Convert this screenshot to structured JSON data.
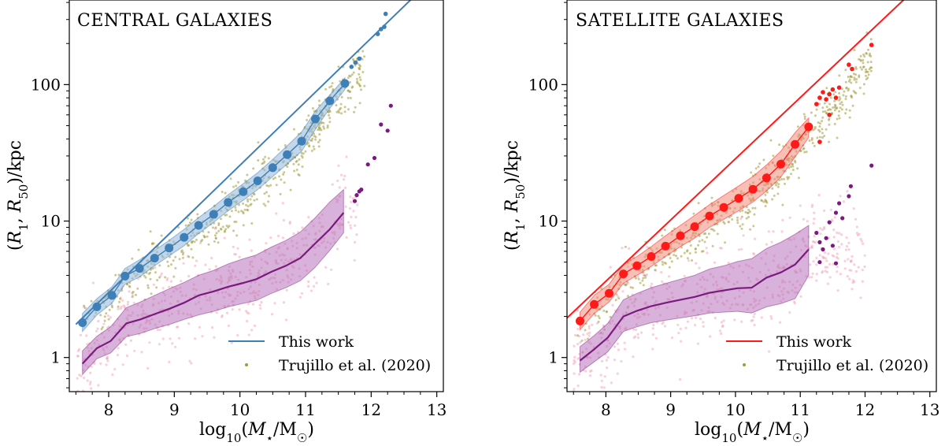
{
  "chart_data": [
    {
      "type": "scatter",
      "title": "CENTRAL GALAXIES",
      "xlabel": "log10(M⋆/M☉)",
      "ylabel": "(R1, R50)/kpc",
      "xlim": [
        7.4,
        13.1
      ],
      "ylim_log10": [
        -0.25,
        2.62
      ],
      "yscale": "log",
      "xticks": [
        "8",
        "9",
        "10",
        "11",
        "12",
        "13"
      ],
      "xtick_values": [
        8,
        9,
        10,
        11,
        12,
        13
      ],
      "yticks": [
        "1",
        "10",
        "100"
      ],
      "ytick_values": [
        1,
        10,
        100
      ],
      "accent_color": "#3f7fb8",
      "band_color": "#8fb6dc",
      "r50_color": "#7b1a7e",
      "r50_band_color": "#b873bb",
      "trujillo_color": "#a09a3a",
      "pink_color": "#f4a7bd",
      "legend": {
        "this_work": "This work",
        "trujillo": "Trujillo et al. (2020)"
      },
      "r1_line": {
        "x": [
          7.5,
          12.75
        ],
        "y": [
          1.75,
          490
        ]
      },
      "r1_points": {
        "x": [
          7.6,
          7.82,
          8.05,
          8.25,
          8.47,
          8.7,
          8.92,
          9.15,
          9.37,
          9.6,
          9.82,
          10.05,
          10.27,
          10.5,
          10.72,
          10.94,
          11.15,
          11.37,
          11.6
        ],
        "y": [
          1.8,
          2.35,
          2.85,
          3.95,
          4.5,
          5.35,
          6.35,
          7.6,
          9.3,
          11.2,
          13.7,
          16.4,
          19.7,
          24.6,
          30.7,
          38.5,
          56,
          76,
          102
        ]
      },
      "r1_band_upper": [
        2.1,
        2.7,
        3.3,
        4.5,
        5.2,
        6.1,
        7.2,
        8.7,
        10.6,
        12.8,
        15.6,
        18.8,
        22.6,
        28.3,
        35.6,
        45,
        64,
        84,
        112
      ],
      "r1_band_lower": [
        1.55,
        2.05,
        2.5,
        3.45,
        3.9,
        4.7,
        5.55,
        6.6,
        8.1,
        9.8,
        11.9,
        14.2,
        17,
        21.2,
        26.2,
        32.5,
        47,
        67,
        92
      ],
      "r1_extra_points": {
        "x": [
          11.7,
          11.76,
          11.82,
          12.1,
          12.15,
          12.2,
          12.22
        ],
        "y": [
          135,
          145,
          155,
          235,
          255,
          265,
          330
        ]
      },
      "r50_line": {
        "x": [
          7.6,
          7.82,
          8.03,
          8.27,
          8.48,
          8.7,
          8.93,
          9.15,
          9.37,
          9.6,
          9.82,
          10.03,
          10.25,
          10.48,
          10.7,
          10.92,
          11.14,
          11.37,
          11.58
        ],
        "y": [
          0.9,
          1.17,
          1.32,
          1.78,
          1.9,
          2.08,
          2.28,
          2.52,
          2.85,
          3.05,
          3.3,
          3.5,
          3.75,
          4.25,
          4.7,
          5.35,
          6.8,
          8.7,
          11.5
        ]
      },
      "r50_band_upper": [
        1.12,
        1.43,
        1.68,
        2.32,
        2.55,
        2.85,
        3.2,
        3.55,
        4.0,
        4.35,
        4.85,
        5.25,
        5.65,
        6.45,
        7.2,
        8.3,
        10.5,
        13.8,
        17
      ],
      "r50_band_lower": [
        0.75,
        0.98,
        1.08,
        1.42,
        1.5,
        1.63,
        1.75,
        1.9,
        2.05,
        2.18,
        2.35,
        2.48,
        2.62,
        2.95,
        3.25,
        3.65,
        4.55,
        6.1,
        8.2
      ],
      "r50_extra_points": {
        "x": [
          11.78,
          11.82,
          11.85,
          11.75,
          11.95,
          12.05,
          12.15,
          12.25,
          12.3
        ],
        "y": [
          15.5,
          16.5,
          17,
          14,
          26,
          29,
          51,
          46,
          70
        ]
      }
    },
    {
      "type": "scatter",
      "title": "SATELLITE GALAXIES",
      "xlabel": "log10(M⋆/M☉)",
      "ylabel": "(R1, R50)/kpc",
      "xlim": [
        7.4,
        13.1
      ],
      "ylim_log10": [
        -0.25,
        2.62
      ],
      "yscale": "log",
      "xticks": [
        "8",
        "9",
        "10",
        "11",
        "12",
        "13"
      ],
      "xtick_values": [
        8,
        9,
        10,
        11,
        12,
        13
      ],
      "yticks": [
        "1",
        "10",
        "100"
      ],
      "ytick_values": [
        1,
        10,
        100
      ],
      "accent_color": "#ff1a1a",
      "band_color": "#f08a7a",
      "r50_color": "#7b1a7e",
      "r50_band_color": "#b873bb",
      "trujillo_color": "#a09a3a",
      "pink_color": "#f4a7bd",
      "legend": {
        "this_work": "This work",
        "trujillo": "Trujillo et al. (2020)"
      },
      "r1_line": {
        "x": [
          7.4,
          12.75
        ],
        "y": [
          1.95,
          490
        ]
      },
      "r1_points": {
        "x": [
          7.6,
          7.82,
          8.05,
          8.27,
          8.48,
          8.7,
          8.92,
          9.15,
          9.37,
          9.6,
          9.82,
          10.05,
          10.27,
          10.48,
          10.7,
          10.92,
          11.13
        ],
        "y": [
          1.85,
          2.45,
          2.95,
          4.1,
          4.7,
          5.5,
          6.55,
          7.8,
          9.1,
          10.9,
          12.6,
          14.7,
          17.1,
          20.7,
          26.1,
          36.5,
          49
        ]
      },
      "r1_band_upper": [
        2.15,
        2.85,
        3.45,
        4.8,
        5.5,
        6.5,
        7.8,
        9.3,
        11,
        13.2,
        15.4,
        18.1,
        21.2,
        25.8,
        32.5,
        44.5,
        57
      ],
      "r1_band_lower": [
        1.6,
        2.1,
        2.55,
        3.5,
        4.0,
        4.65,
        5.5,
        6.5,
        7.5,
        9.0,
        10.3,
        11.9,
        13.8,
        16.6,
        21,
        29.5,
        41
      ],
      "r1_extra_points": {
        "x": [
          11.25,
          11.3,
          11.35,
          11.4,
          11.45,
          11.5,
          11.55,
          11.6,
          11.75,
          11.8,
          12.1,
          11.3,
          11.45
        ],
        "y": [
          72,
          80,
          88,
          78,
          85,
          92,
          80,
          95,
          140,
          130,
          195,
          38,
          60
        ]
      },
      "r50_line": {
        "x": [
          7.6,
          7.82,
          8.03,
          8.27,
          8.48,
          8.7,
          8.93,
          9.15,
          9.37,
          9.6,
          9.82,
          10.03,
          10.25,
          10.48,
          10.7,
          10.92,
          11.13
        ],
        "y": [
          0.95,
          1.15,
          1.4,
          2.0,
          2.2,
          2.38,
          2.52,
          2.65,
          2.78,
          2.98,
          3.1,
          3.22,
          3.25,
          3.85,
          4.2,
          4.8,
          6.2
        ]
      },
      "r50_band_upper": [
        1.2,
        1.45,
        1.78,
        2.65,
        2.95,
        3.25,
        3.5,
        3.75,
        4.0,
        4.45,
        4.7,
        5.05,
        5.3,
        6.3,
        7.0,
        8.0,
        9.3
      ],
      "r50_band_lower": [
        0.78,
        0.93,
        1.1,
        1.55,
        1.68,
        1.8,
        1.88,
        1.95,
        2.02,
        2.12,
        2.15,
        2.18,
        2.12,
        2.35,
        2.48,
        2.7,
        4.0
      ],
      "r50_extra_points": {
        "x": [
          11.25,
          11.3,
          11.35,
          11.4,
          11.45,
          11.5,
          11.55,
          11.6,
          11.65,
          11.75,
          11.78,
          12.1,
          11.55,
          11.3
        ],
        "y": [
          8.2,
          7.0,
          6.2,
          7.5,
          9.8,
          6.6,
          11.5,
          13.5,
          10.5,
          15.2,
          18,
          25.5,
          4.9,
          5.0
        ]
      }
    }
  ]
}
